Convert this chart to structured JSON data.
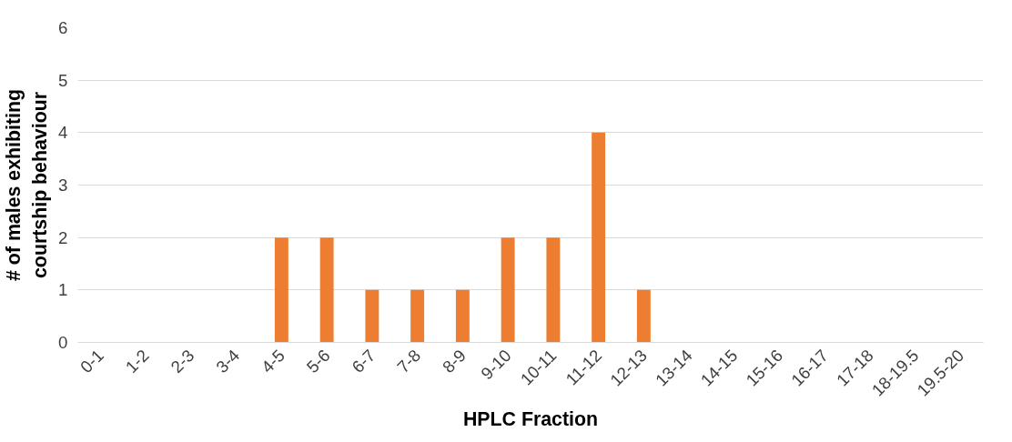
{
  "chart_data": {
    "type": "bar",
    "xlabel": "HPLC Fraction",
    "ylabel": "# of males exhibiting courtship behaviour",
    "categories": [
      "0-1",
      "1-2",
      "2-3",
      "3-4",
      "4-5",
      "5-6",
      "6-7",
      "7-8",
      "8-9",
      "9-10",
      "10-11",
      "11-12",
      "12-13",
      "13-14",
      "14-15",
      "15-16",
      "16-17",
      "17-18",
      "18-19.5",
      "19.5-20"
    ],
    "values": [
      0,
      0,
      0,
      0,
      2,
      2,
      1,
      1,
      1,
      2,
      2,
      4,
      1,
      0,
      0,
      0,
      0,
      0,
      0,
      0
    ],
    "color": "#ed7d31",
    "ylim": [
      0,
      6
    ],
    "yticks": [
      0,
      1,
      2,
      3,
      4,
      5,
      6
    ],
    "grid": "y"
  }
}
